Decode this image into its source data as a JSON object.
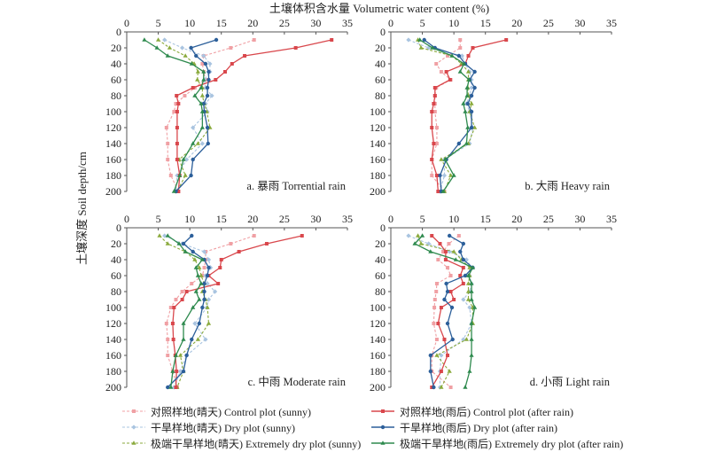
{
  "chart_data": {
    "type": "line",
    "title": "土壤体积含水量 Volumetric water content (%)",
    "xlabel": "土壤体积含水量 Volumetric water content (%)",
    "ylabel": "土壤深度 Soil depth/cm",
    "xlim": [
      0,
      35
    ],
    "ylim": [
      0,
      200
    ],
    "y_inverted": true,
    "grid": false,
    "x_ticks": [
      "0",
      "5",
      "10",
      "15",
      "20",
      "25",
      "30",
      "35"
    ],
    "y_ticks": [
      "0",
      "20",
      "40",
      "60",
      "80",
      "100",
      "120",
      "140",
      "160",
      "180",
      "200"
    ],
    "depths": [
      10,
      20,
      30,
      40,
      50,
      60,
      70,
      80,
      90,
      100,
      120,
      140,
      160,
      180,
      200
    ],
    "legend": {
      "placement": "bottom",
      "entries": [
        {
          "key": "control_sunny",
          "label": "对照样地(晴天) Control plot (sunny)"
        },
        {
          "key": "control_after",
          "label": "对照样地(雨后) Control plot (after rain)"
        },
        {
          "key": "dry_sunny",
          "label": "干旱样地(晴天) Dry plot (sunny)"
        },
        {
          "key": "dry_after",
          "label": "干旱样地(雨后) Dry plot (after rain)"
        },
        {
          "key": "extreme_sunny",
          "label": "极端干旱样地(晴天) Extremely dry plot (sunny)"
        },
        {
          "key": "extreme_after",
          "label": "极端干旱样地(雨后) Extremely dry plot (after rain)"
        }
      ]
    },
    "series_styles": {
      "control_sunny": {
        "color": "#f0a0a4",
        "dashed": true,
        "marker": "square"
      },
      "control_after": {
        "color": "#d9474c",
        "dashed": false,
        "marker": "square"
      },
      "dry_sunny": {
        "color": "#a9c4e0",
        "dashed": true,
        "marker": "diamond"
      },
      "dry_after": {
        "color": "#2c5f9a",
        "dashed": false,
        "marker": "circle"
      },
      "extreme_sunny": {
        "color": "#8aaa3c",
        "dashed": true,
        "marker": "triangle"
      },
      "extreme_after": {
        "color": "#2e8a4e",
        "dashed": false,
        "marker": "triangle"
      }
    },
    "panels": [
      {
        "label": "a. 暴雨 Torrential rain",
        "series": [
          {
            "key": "control_sunny",
            "values": [
              20.2,
              16.5,
              12.2,
              12.0,
              12.2,
              12.5,
              10.8,
              9.2,
              7.8,
              7.5,
              6.3,
              6.5,
              6.5,
              7.0,
              8.2
            ]
          },
          {
            "key": "control_after",
            "values": [
              32.5,
              26.8,
              18.7,
              16.7,
              15.6,
              14.1,
              10.5,
              7.9,
              8.2,
              8.0,
              8.0,
              8.0,
              8.0,
              8.4,
              8.2
            ]
          },
          {
            "key": "dry_sunny",
            "values": [
              6.0,
              8.8,
              12.2,
              13.2,
              13.2,
              12.3,
              12.5,
              13.5,
              12.5,
              12.8,
              10.5,
              12.0,
              9.5,
              8.0,
              7.8
            ]
          },
          {
            "key": "dry_after",
            "values": [
              14.2,
              10.2,
              11.0,
              12.5,
              13.0,
              13.0,
              12.8,
              12.8,
              12.2,
              12.3,
              12.8,
              12.9,
              10.5,
              10.2,
              7.8
            ]
          },
          {
            "key": "extreme_sunny",
            "values": [
              5.0,
              6.8,
              9.3,
              10.7,
              11.3,
              11.2,
              12.0,
              12.0,
              12.3,
              12.7,
              13.2,
              11.3,
              8.3,
              9.3,
              8.0
            ]
          },
          {
            "key": "extreme_after",
            "values": [
              2.8,
              4.8,
              6.5,
              10.3,
              12.2,
              12.2,
              11.8,
              10.8,
              11.8,
              12.0,
              12.0,
              10.5,
              9.0,
              8.4,
              7.5
            ]
          }
        ]
      },
      {
        "label": "b. 大雨 Heavy rain",
        "series": [
          {
            "key": "control_sunny",
            "values": [
              11.0,
              11.0,
              9.0,
              7.2,
              8.0,
              9.5,
              7.2,
              7.0,
              7.0,
              7.0,
              7.3,
              7.3,
              6.5,
              6.5,
              8.5
            ]
          },
          {
            "key": "control_after",
            "values": [
              18.3,
              13.0,
              12.3,
              11.8,
              8.8,
              9.4,
              7.0,
              7.0,
              6.8,
              6.5,
              6.5,
              6.8,
              6.5,
              7.3,
              7.5
            ]
          },
          {
            "key": "dry_sunny",
            "values": [
              2.8,
              6.0,
              11.3,
              11.8,
              12.5,
              12.8,
              12.8,
              12.5,
              12.0,
              12.5,
              13.0,
              12.5,
              8.5,
              8.5,
              7.8
            ]
          },
          {
            "key": "dry_after",
            "values": [
              5.3,
              7.0,
              10.8,
              11.8,
              13.3,
              12.5,
              13.3,
              12.8,
              12.2,
              12.8,
              12.8,
              10.8,
              8.8,
              7.8,
              8.0
            ]
          },
          {
            "key": "extreme_sunny",
            "values": [
              4.3,
              4.8,
              9.7,
              11.2,
              12.3,
              12.3,
              12.2,
              12.3,
              12.8,
              12.5,
              13.3,
              12.3,
              8.0,
              9.5,
              8.5
            ]
          },
          {
            "key": "extreme_after",
            "values": [
              4.6,
              6.6,
              9.7,
              11.6,
              11.0,
              12.4,
              12.1,
              12.1,
              11.5,
              11.8,
              12.2,
              12.0,
              8.6,
              10.0,
              8.3
            ]
          }
        ]
      },
      {
        "label": "c. 中雨 Moderate rain",
        "series": [
          {
            "key": "control_sunny",
            "values": [
              20.2,
              16.5,
              12.5,
              12.5,
              12.3,
              12.0,
              10.3,
              8.8,
              7.8,
              7.0,
              6.3,
              6.5,
              6.5,
              7.3,
              8.0
            ]
          },
          {
            "key": "control_after",
            "values": [
              27.8,
              22.2,
              17.8,
              15.0,
              14.8,
              13.0,
              14.5,
              9.5,
              8.8,
              7.5,
              7.3,
              7.4,
              7.7,
              7.9,
              7.8
            ]
          },
          {
            "key": "dry_sunny",
            "values": [
              6.0,
              8.8,
              12.3,
              13.0,
              13.3,
              12.5,
              12.8,
              14.0,
              13.0,
              12.7,
              10.8,
              12.5,
              9.5,
              8.5,
              7.5
            ]
          },
          {
            "key": "dry_after",
            "values": [
              10.3,
              9.0,
              10.5,
              12.3,
              13.0,
              12.8,
              12.3,
              12.3,
              12.3,
              12.0,
              11.5,
              10.3,
              9.5,
              9.0,
              6.5
            ]
          },
          {
            "key": "extreme_sunny",
            "values": [
              5.2,
              6.5,
              9.3,
              10.8,
              11.5,
              11.8,
              12.3,
              12.0,
              12.5,
              12.8,
              13.0,
              11.3,
              8.5,
              9.0,
              8.0
            ]
          },
          {
            "key": "extreme_after",
            "values": [
              6.5,
              8.3,
              9.3,
              12.0,
              11.0,
              11.3,
              11.8,
              11.0,
              11.5,
              10.5,
              9.0,
              9.0,
              7.8,
              7.3,
              7.0
            ]
          }
        ]
      },
      {
        "label": "d. 小雨 Light rain",
        "series": [
          {
            "key": "control_sunny",
            "values": [
              10.8,
              9.2,
              8.3,
              7.5,
              9.0,
              9.5,
              7.3,
              7.2,
              7.0,
              6.9,
              6.8,
              7.3,
              6.5,
              6.5,
              9.5
            ]
          },
          {
            "key": "control_after",
            "values": [
              6.5,
              7.8,
              8.7,
              8.7,
              11.5,
              11.0,
              11.5,
              9.5,
              10.0,
              8.0,
              7.5,
              8.5,
              9.0,
              8.0,
              6.5
            ]
          },
          {
            "key": "dry_sunny",
            "values": [
              2.8,
              6.0,
              9.3,
              12.0,
              12.8,
              12.5,
              12.8,
              12.5,
              11.5,
              12.5,
              12.8,
              11.5,
              8.0,
              7.8,
              7.8
            ]
          },
          {
            "key": "dry_after",
            "values": [
              9.3,
              11.5,
              11.0,
              11.5,
              13.0,
              11.8,
              8.8,
              9.0,
              8.5,
              9.7,
              9.0,
              9.8,
              6.3,
              6.3,
              6.8
            ]
          },
          {
            "key": "extreme_sunny",
            "values": [
              4.3,
              4.8,
              10.0,
              11.2,
              12.5,
              12.5,
              12.3,
              12.3,
              12.3,
              13.0,
              13.0,
              12.0,
              7.3,
              9.3,
              8.0
            ]
          },
          {
            "key": "extreme_after",
            "values": [
              5.0,
              3.8,
              6.3,
              10.3,
              13.0,
              12.3,
              12.8,
              12.8,
              12.8,
              13.3,
              12.8,
              12.8,
              12.8,
              12.5,
              11.8
            ]
          }
        ]
      }
    ]
  }
}
